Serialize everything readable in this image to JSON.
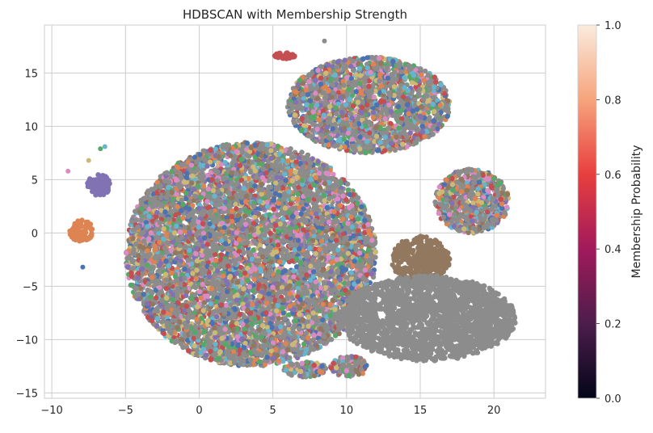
{
  "chart_data": {
    "type": "scatter",
    "title": "HDBSCAN with Membership Strength",
    "xlabel": "",
    "ylabel": "",
    "xlim": [
      -10.5,
      23.5
    ],
    "ylim": [
      -15.5,
      19.5
    ],
    "x_ticks": [
      -10,
      -5,
      0,
      5,
      10,
      15,
      20
    ],
    "y_ticks": [
      -15,
      -10,
      -5,
      0,
      5,
      10,
      15
    ],
    "grid": true,
    "palette": [
      "#4c72b0",
      "#dd8452",
      "#55a868",
      "#c44e52",
      "#8172b3",
      "#937860",
      "#da8bc3",
      "#8c8c8c",
      "#ccb974",
      "#64b5cd"
    ],
    "noise_color": "#8c8c8c",
    "clusters": [
      {
        "shape": "big_left_mass",
        "color": "mixed",
        "cx": 3.5,
        "cy": -2.0,
        "rx": 8.5,
        "ry": 10.5
      },
      {
        "shape": "upper_right_mass",
        "color": "mixed",
        "cx": 11.5,
        "cy": 12.0,
        "rx": 5.5,
        "ry": 4.5
      },
      {
        "shape": "right_lobe",
        "color": "mixed",
        "cx": 18.5,
        "cy": 3.0,
        "rx": 2.5,
        "ry": 3.0
      },
      {
        "shape": "brown_blob",
        "color": "#937860",
        "cx": 15.0,
        "cy": -2.5,
        "rx": 2.0,
        "ry": 2.2
      },
      {
        "shape": "gray_ellipse",
        "color": "#8c8c8c",
        "cx": 15.5,
        "cy": -8.0,
        "rx": 6.0,
        "ry": 4.0
      },
      {
        "shape": "purple_blob",
        "color": "#8172b3",
        "cx": -6.8,
        "cy": 4.5,
        "rx": 0.8,
        "ry": 1.0
      },
      {
        "shape": "orange_blob",
        "color": "#dd8452",
        "cx": -8.0,
        "cy": 0.2,
        "rx": 0.8,
        "ry": 1.0
      },
      {
        "shape": "bottom_small_a",
        "color": "mixed",
        "cx": 7.2,
        "cy": -12.8,
        "rx": 1.5,
        "ry": 0.7
      },
      {
        "shape": "bottom_small_b",
        "color": "mixed",
        "cx": 10.2,
        "cy": -12.5,
        "rx": 1.3,
        "ry": 1.0
      },
      {
        "shape": "top_small",
        "color": "#c44e52",
        "cx": 5.8,
        "cy": 16.6,
        "rx": 0.7,
        "ry": 0.3
      }
    ],
    "isolated_points": [
      {
        "x": -7.9,
        "y": -3.2,
        "color": "#4c72b0"
      },
      {
        "x": -8.9,
        "y": 5.8,
        "color": "#da8bc3"
      },
      {
        "x": -7.5,
        "y": 6.8,
        "color": "#ccb974"
      },
      {
        "x": -6.7,
        "y": 7.9,
        "color": "#55a868"
      },
      {
        "x": -6.4,
        "y": 8.1,
        "color": "#64b5cd"
      },
      {
        "x": 8.5,
        "y": 18.0,
        "color": "#8c8c8c"
      }
    ],
    "colorbar": {
      "label": "Membership Probability",
      "range": [
        0.0,
        1.0
      ],
      "ticks": [
        "0.0",
        "0.2",
        "0.4",
        "0.6",
        "0.8",
        "1.0"
      ],
      "colormap": "rocket"
    }
  }
}
